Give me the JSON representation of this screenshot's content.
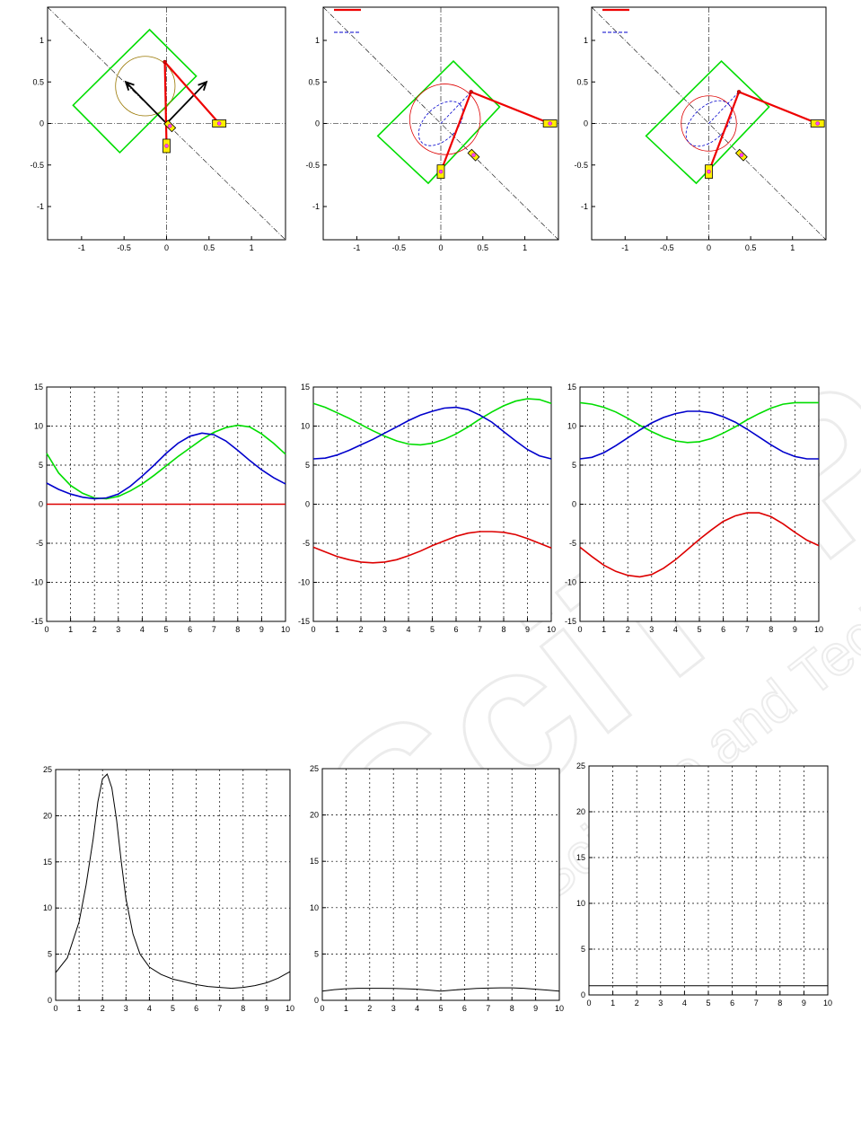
{
  "chart_data": [
    {
      "id": "mech1",
      "type": "diagram",
      "xlim": [
        -1.4,
        1.4
      ],
      "ylim": [
        -1.4,
        1.4
      ],
      "xticks": [
        -1,
        -0.5,
        0,
        0.5,
        1
      ],
      "yticks": [
        -1,
        -0.5,
        0,
        0.5,
        1
      ],
      "xtick_labels": [
        "-1",
        "-0.5",
        "0",
        "0.5",
        "1"
      ],
      "ytick_labels": [
        "-1",
        "-0.5",
        "0",
        "0.5",
        "1"
      ],
      "legend": false,
      "diagonal": [
        [
          -1.4,
          1.4
        ],
        [
          1.4,
          -1.4
        ]
      ],
      "square": [
        [
          -0.2,
          1.13
        ],
        [
          0.35,
          0.57
        ],
        [
          -0.55,
          -0.35
        ],
        [
          -1.1,
          0.22
        ]
      ],
      "circle": {
        "cx": -0.25,
        "cy": 0.45,
        "r": 0.35
      },
      "arrows": [
        [
          [
            0,
            0
          ],
          [
            -0.48,
            0.5
          ]
        ],
        [
          [
            0,
            0
          ],
          [
            0.47,
            0.5
          ]
        ]
      ],
      "links": [
        [
          [
            0,
            -0.27
          ],
          [
            -0.02,
            0.74
          ]
        ],
        [
          [
            -0.02,
            0.74
          ],
          [
            0.62,
            0
          ]
        ]
      ],
      "sliders": [
        {
          "x": 0.62,
          "y": 0,
          "rot": 0
        },
        {
          "x": 0,
          "y": -0.27,
          "rot": 90
        },
        {
          "x": 0.04,
          "y": -0.03,
          "rot": -45,
          "small": true
        }
      ],
      "dashed_circle": null
    },
    {
      "id": "mech2",
      "type": "diagram",
      "xlim": [
        -1.4,
        1.4
      ],
      "ylim": [
        -1.4,
        1.4
      ],
      "xticks": [
        -1,
        -0.5,
        0,
        0.5,
        1
      ],
      "yticks": [
        -1,
        -0.5,
        0,
        0.5,
        1
      ],
      "xtick_labels": [
        "-1",
        "-0.5",
        "0",
        "0.5",
        "1"
      ],
      "ytick_labels": [
        "-1",
        "-0.5",
        "0",
        "0.5",
        "1"
      ],
      "legend": true,
      "diagonal": [
        [
          -1.4,
          1.4
        ],
        [
          1.4,
          -1.4
        ]
      ],
      "square": [
        [
          0.15,
          0.75
        ],
        [
          0.7,
          0.2
        ],
        [
          -0.15,
          -0.72
        ],
        [
          -0.75,
          -0.15
        ]
      ],
      "circle": {
        "cx": 0.05,
        "cy": 0.05,
        "r": 0.42
      },
      "dashed_circle": {
        "cx": 0,
        "cy": 0,
        "r": 0.32
      },
      "arrows": [],
      "links": [
        [
          [
            0,
            -0.58
          ],
          [
            0.36,
            0.38
          ]
        ],
        [
          [
            0.36,
            0.38
          ],
          [
            1.3,
            0
          ]
        ]
      ],
      "sliders": [
        {
          "x": 1.3,
          "y": 0,
          "rot": 0
        },
        {
          "x": 0,
          "y": -0.58,
          "rot": 90
        },
        {
          "x": 0.39,
          "y": -0.38,
          "rot": -45,
          "small": true
        }
      ]
    },
    {
      "id": "mech3",
      "type": "diagram",
      "xlim": [
        -1.4,
        1.4
      ],
      "ylim": [
        -1.4,
        1.4
      ],
      "xticks": [
        -1,
        -0.5,
        0,
        0.5,
        1
      ],
      "yticks": [
        -1,
        -0.5,
        0,
        0.5,
        1
      ],
      "xtick_labels": [
        "-1",
        "-0.5",
        "0",
        "0.5",
        "1"
      ],
      "ytick_labels": [
        "-1",
        "-0.5",
        "0",
        "0.5",
        "1"
      ],
      "legend": true,
      "diagonal": [
        [
          -1.4,
          1.4
        ],
        [
          1.4,
          -1.4
        ]
      ],
      "square": [
        [
          0.15,
          0.75
        ],
        [
          0.72,
          0.2
        ],
        [
          -0.15,
          -0.72
        ],
        [
          -0.75,
          -0.15
        ]
      ],
      "circle": {
        "cx": 0,
        "cy": 0,
        "r": 0.33
      },
      "dashed_circle": {
        "cx": 0,
        "cy": 0,
        "r": 0.33
      },
      "arrows": [],
      "links": [
        [
          [
            0,
            -0.58
          ],
          [
            0.36,
            0.38
          ]
        ],
        [
          [
            0.36,
            0.38
          ],
          [
            1.3,
            0
          ]
        ]
      ],
      "sliders": [
        {
          "x": 1.3,
          "y": 0,
          "rot": 0
        },
        {
          "x": 0,
          "y": -0.58,
          "rot": 90
        },
        {
          "x": 0.39,
          "y": -0.38,
          "rot": -45,
          "small": true
        }
      ]
    },
    {
      "id": "angles1",
      "type": "line",
      "xlim": [
        0,
        10
      ],
      "ylim": [
        -15,
        15
      ],
      "xticks": [
        0,
        1,
        2,
        3,
        4,
        5,
        6,
        7,
        8,
        9,
        10
      ],
      "yticks": [
        -15,
        -10,
        -5,
        0,
        5,
        10,
        15
      ],
      "xtick_labels": [
        "0",
        "1",
        "2",
        "3",
        "4",
        "5",
        "6",
        "7",
        "8",
        "9",
        "10"
      ],
      "ytick_labels": [
        "-15",
        "-10",
        "-5",
        "0",
        "5",
        "10",
        "15"
      ],
      "grid": true,
      "series": [
        {
          "color": "#00dd00",
          "x": [
            0,
            0.5,
            1,
            1.5,
            2,
            2.5,
            3,
            3.5,
            4,
            4.5,
            5,
            5.5,
            6,
            6.5,
            7,
            7.5,
            8,
            8.5,
            9,
            9.5,
            10
          ],
          "y": [
            6.5,
            4.0,
            2.4,
            1.4,
            0.8,
            0.7,
            1.0,
            1.7,
            2.6,
            3.7,
            4.9,
            6.1,
            7.2,
            8.3,
            9.2,
            9.8,
            10.1,
            9.9,
            9.0,
            7.8,
            6.4
          ]
        },
        {
          "color": "#0000cc",
          "x": [
            0,
            0.5,
            1,
            1.5,
            2,
            2.5,
            3,
            3.5,
            4,
            4.5,
            5,
            5.5,
            6,
            6.5,
            7,
            7.5,
            8,
            8.5,
            9,
            9.5,
            10
          ],
          "y": [
            2.7,
            1.9,
            1.3,
            0.9,
            0.7,
            0.8,
            1.3,
            2.3,
            3.6,
            5.0,
            6.5,
            7.8,
            8.7,
            9.1,
            8.9,
            8.1,
            6.9,
            5.6,
            4.4,
            3.4,
            2.6
          ]
        },
        {
          "color": "#dd0000",
          "x": [
            0,
            10
          ],
          "y": [
            0,
            0
          ]
        }
      ]
    },
    {
      "id": "angles2",
      "type": "line",
      "xlim": [
        0,
        10
      ],
      "ylim": [
        -15,
        15
      ],
      "xticks": [
        0,
        1,
        2,
        3,
        4,
        5,
        6,
        7,
        8,
        9,
        10
      ],
      "yticks": [
        -15,
        -10,
        -5,
        0,
        5,
        10,
        15
      ],
      "xtick_labels": [
        "0",
        "1",
        "2",
        "3",
        "4",
        "5",
        "6",
        "7",
        "8",
        "9",
        "10"
      ],
      "ytick_labels": [
        "-15",
        "-10",
        "-5",
        "0",
        "5",
        "10",
        "15"
      ],
      "grid": true,
      "series": [
        {
          "color": "#00dd00",
          "x": [
            0,
            0.5,
            1,
            1.5,
            2,
            2.5,
            3,
            3.5,
            4,
            4.5,
            5,
            5.5,
            6,
            6.5,
            7,
            7.5,
            8,
            8.5,
            9,
            9.5,
            10
          ],
          "y": [
            12.9,
            12.4,
            11.7,
            11.0,
            10.2,
            9.4,
            8.7,
            8.1,
            7.7,
            7.6,
            7.8,
            8.3,
            9.0,
            9.9,
            10.9,
            11.8,
            12.6,
            13.2,
            13.5,
            13.4,
            12.9
          ]
        },
        {
          "color": "#0000cc",
          "x": [
            0,
            0.5,
            1,
            1.5,
            2,
            2.5,
            3,
            3.5,
            4,
            4.5,
            5,
            5.5,
            6,
            6.5,
            7,
            7.5,
            8,
            8.5,
            9,
            9.5,
            10
          ],
          "y": [
            5.8,
            5.9,
            6.3,
            6.9,
            7.6,
            8.3,
            9.1,
            9.9,
            10.7,
            11.4,
            11.9,
            12.3,
            12.4,
            12.1,
            11.4,
            10.5,
            9.3,
            8.1,
            7.0,
            6.2,
            5.8
          ]
        },
        {
          "color": "#dd0000",
          "x": [
            0,
            0.5,
            1,
            1.5,
            2,
            2.5,
            3,
            3.5,
            4,
            4.5,
            5,
            5.5,
            6,
            6.5,
            7,
            7.5,
            8,
            8.5,
            9,
            9.5,
            10
          ],
          "y": [
            -5.5,
            -6.1,
            -6.7,
            -7.1,
            -7.4,
            -7.5,
            -7.4,
            -7.1,
            -6.6,
            -6.0,
            -5.3,
            -4.7,
            -4.1,
            -3.7,
            -3.5,
            -3.5,
            -3.6,
            -3.9,
            -4.4,
            -5.0,
            -5.6
          ]
        }
      ]
    },
    {
      "id": "angles3",
      "type": "line",
      "xlim": [
        0,
        10
      ],
      "ylim": [
        -15,
        15
      ],
      "xticks": [
        0,
        1,
        2,
        3,
        4,
        5,
        6,
        7,
        8,
        9,
        10
      ],
      "yticks": [
        -15,
        -10,
        -5,
        0,
        5,
        10,
        15
      ],
      "xtick_labels": [
        "0",
        "1",
        "2",
        "3",
        "4",
        "5",
        "6",
        "7",
        "8",
        "9",
        "10"
      ],
      "ytick_labels": [
        "-15",
        "-10",
        "-5",
        "0",
        "5",
        "10",
        "15"
      ],
      "grid": true,
      "series": [
        {
          "color": "#00dd00",
          "x": [
            0,
            0.5,
            1,
            1.5,
            2,
            2.5,
            3,
            3.5,
            4,
            4.5,
            5,
            5.5,
            6,
            6.5,
            7,
            7.5,
            8,
            8.5,
            9,
            9.5,
            10
          ],
          "y": [
            13.0,
            12.8,
            12.4,
            11.8,
            11.0,
            10.1,
            9.3,
            8.6,
            8.1,
            7.9,
            8.0,
            8.4,
            9.1,
            9.9,
            10.8,
            11.6,
            12.3,
            12.8,
            13.0,
            13.0,
            13.0
          ]
        },
        {
          "color": "#0000cc",
          "x": [
            0,
            0.5,
            1,
            1.5,
            2,
            2.5,
            3,
            3.5,
            4,
            4.5,
            5,
            5.5,
            6,
            6.5,
            7,
            7.5,
            8,
            8.5,
            9,
            9.5,
            10
          ],
          "y": [
            5.8,
            6.0,
            6.6,
            7.5,
            8.5,
            9.5,
            10.4,
            11.1,
            11.6,
            11.9,
            11.9,
            11.7,
            11.2,
            10.5,
            9.6,
            8.6,
            7.6,
            6.7,
            6.1,
            5.8,
            5.8
          ]
        },
        {
          "color": "#dd0000",
          "x": [
            0,
            0.5,
            1,
            1.5,
            2,
            2.5,
            3,
            3.5,
            4,
            4.5,
            5,
            5.5,
            6,
            6.5,
            7,
            7.5,
            8,
            8.5,
            9,
            9.5,
            10
          ],
          "y": [
            -5.5,
            -6.7,
            -7.8,
            -8.6,
            -9.1,
            -9.3,
            -9.0,
            -8.2,
            -7.1,
            -5.8,
            -4.5,
            -3.3,
            -2.2,
            -1.5,
            -1.1,
            -1.1,
            -1.6,
            -2.5,
            -3.6,
            -4.6,
            -5.3
          ]
        }
      ]
    },
    {
      "id": "cond1",
      "type": "line",
      "xlim": [
        0,
        10
      ],
      "ylim": [
        0,
        25
      ],
      "xticks": [
        0,
        1,
        2,
        3,
        4,
        5,
        6,
        7,
        8,
        9,
        10
      ],
      "yticks": [
        0,
        5,
        10,
        15,
        20,
        25
      ],
      "xtick_labels": [
        "0",
        "1",
        "2",
        "3",
        "4",
        "5",
        "6",
        "7",
        "8",
        "9",
        "10"
      ],
      "ytick_labels": [
        "0",
        "5",
        "10",
        "15",
        "20",
        "25"
      ],
      "grid": true,
      "series": [
        {
          "color": "#000000",
          "x": [
            0,
            0.5,
            1,
            1.3,
            1.6,
            1.8,
            2.0,
            2.2,
            2.4,
            2.6,
            2.8,
            3.0,
            3.3,
            3.6,
            4,
            4.5,
            5,
            5.5,
            6,
            6.5,
            7,
            7.5,
            8,
            8.5,
            9,
            9.5,
            10
          ],
          "y": [
            3.0,
            4.6,
            8.5,
            12.5,
            17.5,
            21.5,
            24.0,
            24.5,
            23.0,
            19.5,
            15.0,
            11.0,
            7.2,
            5.0,
            3.6,
            2.8,
            2.3,
            2.0,
            1.7,
            1.5,
            1.4,
            1.3,
            1.4,
            1.6,
            1.9,
            2.4,
            3.1
          ]
        }
      ]
    },
    {
      "id": "cond2",
      "type": "line",
      "xlim": [
        0,
        10
      ],
      "ylim": [
        0,
        25
      ],
      "xticks": [
        0,
        1,
        2,
        3,
        4,
        5,
        6,
        7,
        8,
        9,
        10
      ],
      "yticks": [
        0,
        5,
        10,
        15,
        20,
        25
      ],
      "xtick_labels": [
        "0",
        "1",
        "2",
        "3",
        "4",
        "5",
        "6",
        "7",
        "8",
        "9",
        "10"
      ],
      "ytick_labels": [
        "0",
        "5",
        "10",
        "15",
        "20",
        "25"
      ],
      "grid": true,
      "series": [
        {
          "color": "#000000",
          "x": [
            0,
            0.5,
            1,
            1.5,
            2,
            2.5,
            3,
            3.5,
            4,
            4.5,
            5,
            5.5,
            6,
            6.5,
            7,
            7.5,
            8,
            8.5,
            9,
            9.5,
            10
          ],
          "y": [
            1.0,
            1.15,
            1.25,
            1.3,
            1.3,
            1.3,
            1.28,
            1.25,
            1.2,
            1.1,
            1.0,
            1.1,
            1.2,
            1.28,
            1.32,
            1.35,
            1.35,
            1.3,
            1.2,
            1.1,
            1.0
          ]
        }
      ]
    },
    {
      "id": "cond3",
      "type": "line",
      "xlim": [
        0,
        10
      ],
      "ylim": [
        0,
        25
      ],
      "xticks": [
        0,
        1,
        2,
        3,
        4,
        5,
        6,
        7,
        8,
        9,
        10
      ],
      "yticks": [
        0,
        5,
        10,
        15,
        20,
        25
      ],
      "xtick_labels": [
        "0",
        "1",
        "2",
        "3",
        "4",
        "5",
        "6",
        "7",
        "8",
        "9",
        "10"
      ],
      "ytick_labels": [
        "0",
        "5",
        "10",
        "15",
        "20",
        "25"
      ],
      "grid": true,
      "series": [
        {
          "color": "#000000",
          "x": [
            0,
            10
          ],
          "y": [
            1.0,
            1.0
          ]
        }
      ]
    }
  ]
}
